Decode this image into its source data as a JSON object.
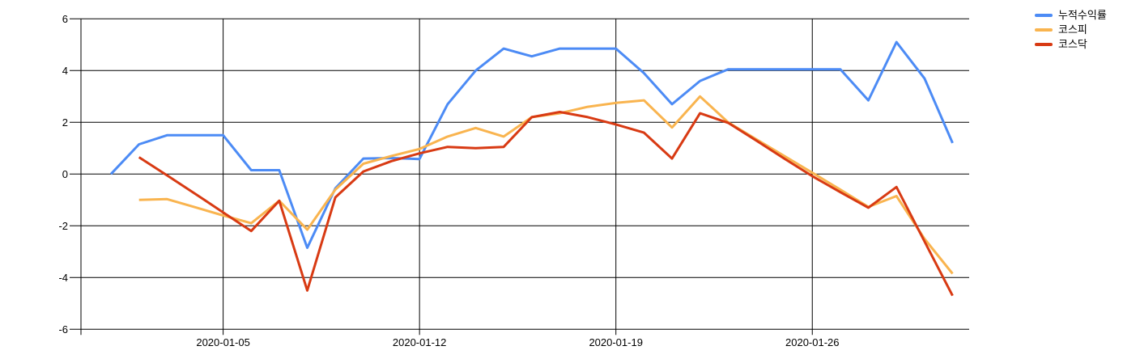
{
  "chart_data": {
    "type": "line",
    "title": "",
    "xlabel": "",
    "ylabel": "",
    "ylim": [
      -6,
      6
    ],
    "y_ticks": [
      6,
      4,
      2,
      0,
      -2,
      -4,
      -6
    ],
    "x_tick_labels": [
      "2020-01-05",
      "2020-01-12",
      "2020-01-19",
      "2020-01-26"
    ],
    "x_range": [
      "2020-01-01",
      "2020-01-31"
    ],
    "grid": true,
    "grid_color": "#000000",
    "axis_text_color": "#000000",
    "legend_position": "right",
    "series": [
      {
        "name": "누적수익률",
        "color": "#4C8BF5",
        "points": [
          [
            "2020-01-01",
            0.0
          ],
          [
            "2020-01-02",
            1.15
          ],
          [
            "2020-01-03",
            1.5
          ],
          [
            "2020-01-04",
            1.5
          ],
          [
            "2020-01-05",
            1.5
          ],
          [
            "2020-01-06",
            0.15
          ],
          [
            "2020-01-07",
            0.15
          ],
          [
            "2020-01-08",
            -2.85
          ],
          [
            "2020-01-09",
            -0.55
          ],
          [
            "2020-01-10",
            0.6
          ],
          [
            "2020-01-11",
            0.62
          ],
          [
            "2020-01-12",
            0.58
          ],
          [
            "2020-01-13",
            2.7
          ],
          [
            "2020-01-14",
            4.0
          ],
          [
            "2020-01-15",
            4.85
          ],
          [
            "2020-01-16",
            4.55
          ],
          [
            "2020-01-17",
            4.85
          ],
          [
            "2020-01-18",
            4.85
          ],
          [
            "2020-01-19",
            4.85
          ],
          [
            "2020-01-20",
            3.9
          ],
          [
            "2020-01-21",
            2.7
          ],
          [
            "2020-01-22",
            3.6
          ],
          [
            "2020-01-23",
            4.05
          ],
          [
            "2020-01-24",
            4.05
          ],
          [
            "2020-01-25",
            4.05
          ],
          [
            "2020-01-26",
            4.05
          ],
          [
            "2020-01-27",
            4.05
          ],
          [
            "2020-01-28",
            2.85
          ],
          [
            "2020-01-29",
            5.1
          ],
          [
            "2020-01-30",
            3.7
          ],
          [
            "2020-01-31",
            1.2
          ]
        ]
      },
      {
        "name": "코스피",
        "color": "#F9B44F",
        "points": [
          [
            "2020-01-02",
            -1.0
          ],
          [
            "2020-01-03",
            -0.97
          ],
          [
            "2020-01-04",
            -1.28
          ],
          [
            "2020-01-05",
            -1.6
          ],
          [
            "2020-01-06",
            -1.9
          ],
          [
            "2020-01-07",
            -1.03
          ],
          [
            "2020-01-08",
            -2.15
          ],
          [
            "2020-01-09",
            -0.6
          ],
          [
            "2020-01-10",
            0.4
          ],
          [
            "2020-01-11",
            0.7
          ],
          [
            "2020-01-12",
            0.97
          ],
          [
            "2020-01-13",
            1.45
          ],
          [
            "2020-01-14",
            1.78
          ],
          [
            "2020-01-15",
            1.45
          ],
          [
            "2020-01-16",
            2.2
          ],
          [
            "2020-01-17",
            2.35
          ],
          [
            "2020-01-18",
            2.6
          ],
          [
            "2020-01-19",
            2.75
          ],
          [
            "2020-01-20",
            2.85
          ],
          [
            "2020-01-21",
            1.8
          ],
          [
            "2020-01-22",
            3.0
          ],
          [
            "2020-01-23",
            2.0
          ],
          [
            "2020-01-24",
            1.35
          ],
          [
            "2020-01-25",
            0.7
          ],
          [
            "2020-01-26",
            0.05
          ],
          [
            "2020-01-27",
            -0.6
          ],
          [
            "2020-01-28",
            -1.27
          ],
          [
            "2020-01-29",
            -0.85
          ],
          [
            "2020-01-30",
            -2.5
          ],
          [
            "2020-01-31",
            -3.85
          ]
        ]
      },
      {
        "name": "코스닥",
        "color": "#D83A13",
        "points": [
          [
            "2020-01-02",
            0.65
          ],
          [
            "2020-01-03",
            -0.05
          ],
          [
            "2020-01-04",
            -0.76
          ],
          [
            "2020-01-05",
            -1.48
          ],
          [
            "2020-01-06",
            -2.2
          ],
          [
            "2020-01-07",
            -1.03
          ],
          [
            "2020-01-08",
            -4.5
          ],
          [
            "2020-01-09",
            -0.9
          ],
          [
            "2020-01-10",
            0.1
          ],
          [
            "2020-01-11",
            0.5
          ],
          [
            "2020-01-12",
            0.8
          ],
          [
            "2020-01-13",
            1.05
          ],
          [
            "2020-01-14",
            1.0
          ],
          [
            "2020-01-15",
            1.05
          ],
          [
            "2020-01-16",
            2.2
          ],
          [
            "2020-01-17",
            2.4
          ],
          [
            "2020-01-18",
            2.2
          ],
          [
            "2020-01-19",
            1.92
          ],
          [
            "2020-01-20",
            1.6
          ],
          [
            "2020-01-21",
            0.6
          ],
          [
            "2020-01-22",
            2.35
          ],
          [
            "2020-01-23",
            1.98
          ],
          [
            "2020-01-24",
            1.3
          ],
          [
            "2020-01-25",
            0.6
          ],
          [
            "2020-01-26",
            -0.08
          ],
          [
            "2020-01-27",
            -0.7
          ],
          [
            "2020-01-28",
            -1.3
          ],
          [
            "2020-01-29",
            -0.5
          ],
          [
            "2020-01-30",
            -2.6
          ],
          [
            "2020-01-31",
            -4.7
          ]
        ]
      }
    ]
  }
}
